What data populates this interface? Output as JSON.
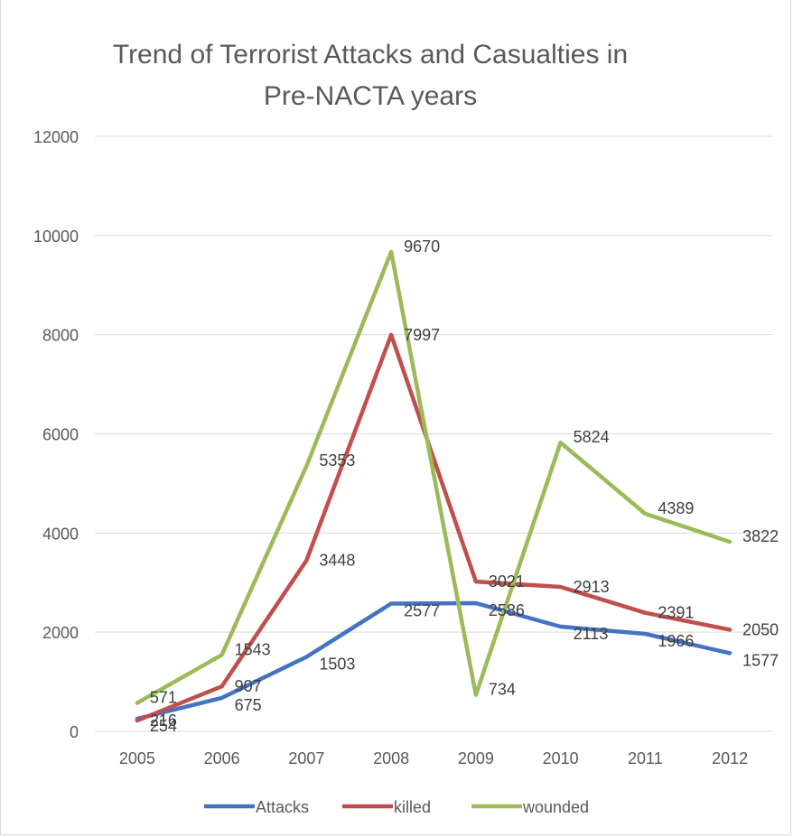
{
  "chart_data": {
    "type": "line",
    "title_line1": "Trend of Terrorist Attacks and Casualties in",
    "title_line2": "Pre-NACTA years",
    "categories": [
      "2005",
      "2006",
      "2007",
      "2008",
      "2009",
      "2010",
      "2011",
      "2012"
    ],
    "ylim": [
      0,
      12000
    ],
    "yticks": [
      "0",
      "2000",
      "4000",
      "6000",
      "8000",
      "10000",
      "12000"
    ],
    "grid": true,
    "legend_position": "bottom",
    "series": [
      {
        "name": "Attacks",
        "color": "#4472c4",
        "values": [
          254,
          675,
          1503,
          2577,
          2586,
          2113,
          1966,
          1577
        ]
      },
      {
        "name": "killed",
        "color": "#c0504d",
        "values": [
          216,
          907,
          3448,
          7997,
          3021,
          2913,
          2391,
          2050
        ]
      },
      {
        "name": "wounded",
        "color": "#9bbb59",
        "values": [
          571,
          1543,
          5353,
          9670,
          734,
          5824,
          4389,
          3822
        ]
      }
    ]
  }
}
